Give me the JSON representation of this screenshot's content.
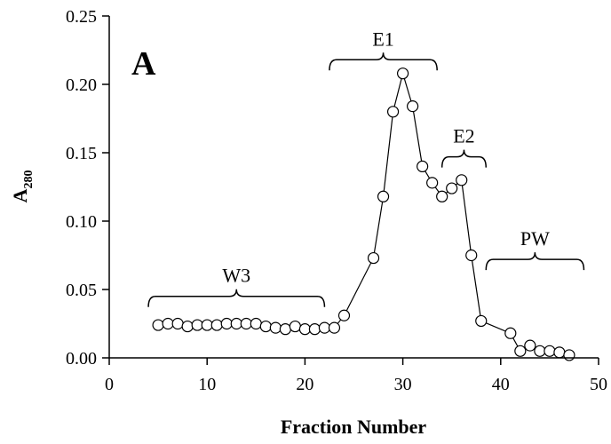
{
  "chart_data": {
    "type": "line",
    "title": "",
    "panel_label": "A",
    "xlabel": "Fraction Number",
    "ylabel_main": "A",
    "ylabel_sub": "280",
    "xlim": [
      0,
      50
    ],
    "ylim": [
      0.0,
      0.25
    ],
    "x_ticks": [
      0,
      10,
      20,
      30,
      40,
      50
    ],
    "x_tick_labels": [
      "0",
      "10",
      "20",
      "30",
      "40",
      "50"
    ],
    "y_ticks": [
      0.0,
      0.05,
      0.1,
      0.15,
      0.2,
      0.25
    ],
    "y_tick_labels": [
      "0.00",
      "0.05",
      "0.10",
      "0.15",
      "0.20",
      "0.25"
    ],
    "grid": false,
    "marker": "open-circle",
    "series": [
      {
        "x": [
          5,
          6,
          7,
          8,
          9,
          10,
          11,
          12,
          13,
          14,
          15,
          16,
          17,
          18,
          19,
          20,
          21,
          22,
          23,
          24,
          27,
          28,
          29,
          30,
          31,
          32,
          33,
          34,
          35,
          36,
          37,
          38,
          41,
          42,
          43,
          44,
          45,
          46,
          47
        ],
        "y": [
          0.024,
          0.025,
          0.025,
          0.023,
          0.024,
          0.024,
          0.024,
          0.025,
          0.025,
          0.025,
          0.025,
          0.023,
          0.022,
          0.021,
          0.023,
          0.021,
          0.021,
          0.022,
          0.022,
          0.031,
          0.073,
          0.118,
          0.18,
          0.208,
          0.184,
          0.14,
          0.128,
          0.118,
          0.124,
          0.13,
          0.075,
          0.027,
          0.018,
          0.005,
          0.009,
          0.005,
          0.005,
          0.004,
          0.002
        ]
      }
    ],
    "annotations": [
      {
        "label": "W3",
        "x_start": 4,
        "x_end": 22,
        "y": 0.045
      },
      {
        "label": "E1",
        "x_start": 22.5,
        "x_end": 33.5,
        "y": 0.218
      },
      {
        "label": "E2",
        "x_start": 34,
        "x_end": 38.5,
        "y": 0.147
      },
      {
        "label": "PW",
        "x_start": 38.5,
        "x_end": 48.5,
        "y": 0.072
      }
    ]
  }
}
